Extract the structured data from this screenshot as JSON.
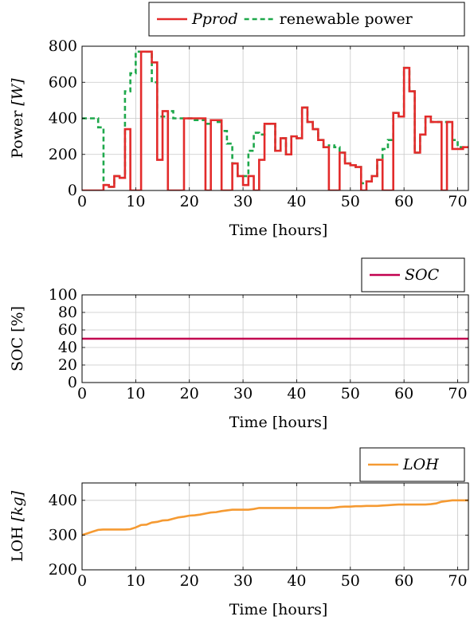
{
  "colors": {
    "pprod": "#e32b2b",
    "renewable": "#1ea84b",
    "soc": "#c2004f",
    "loh": "#f59a32"
  },
  "chart_data": [
    {
      "type": "line",
      "xlabel": "Time [hours]",
      "ylabel_main": "Power ",
      "ylabel_unit": "[W]",
      "xlim": [
        0,
        72
      ],
      "ylim": [
        0,
        800
      ],
      "xticks": [
        0,
        10,
        20,
        30,
        40,
        50,
        60,
        70
      ],
      "yticks": [
        0,
        200,
        400,
        600,
        800
      ],
      "step": true,
      "series": [
        {
          "name": "Pprod",
          "color_key": "pprod",
          "style": "solid",
          "pulse": true,
          "x": [
            0,
            1,
            2,
            3,
            4,
            5,
            6,
            7,
            8,
            9,
            10,
            11,
            12,
            13,
            14,
            15,
            16,
            17,
            18,
            19,
            20,
            21,
            22,
            23,
            24,
            25,
            26,
            27,
            28,
            29,
            30,
            31,
            32,
            33,
            34,
            35,
            36,
            37,
            38,
            39,
            40,
            41,
            42,
            43,
            44,
            45,
            46,
            47,
            48,
            49,
            50,
            51,
            52,
            53,
            54,
            55,
            56,
            57,
            58,
            59,
            60,
            61,
            62,
            63,
            64,
            65,
            66,
            67,
            68,
            69,
            70,
            71
          ],
          "values": [
            0,
            0,
            0,
            0,
            30,
            20,
            80,
            70,
            340,
            0,
            0,
            770,
            770,
            710,
            170,
            440,
            0,
            0,
            0,
            400,
            400,
            400,
            400,
            0,
            390,
            390,
            0,
            0,
            150,
            80,
            30,
            80,
            0,
            170,
            370,
            370,
            220,
            290,
            200,
            300,
            290,
            460,
            380,
            340,
            280,
            240,
            0,
            0,
            210,
            150,
            140,
            130,
            0,
            50,
            80,
            170,
            0,
            0,
            430,
            410,
            680,
            550,
            210,
            310,
            410,
            380,
            380,
            0,
            380,
            230,
            230,
            240
          ]
        },
        {
          "name": "renewable power",
          "color_key": "renewable",
          "style": "dashed",
          "pulse": false,
          "x": [
            0,
            1,
            2,
            3,
            4,
            5,
            6,
            7,
            8,
            9,
            10,
            11,
            12,
            13,
            14,
            15,
            16,
            17,
            18,
            19,
            20,
            21,
            22,
            23,
            24,
            25,
            26,
            27,
            28,
            29,
            30,
            31,
            32,
            33,
            34,
            35,
            36,
            37,
            38,
            39,
            40,
            41,
            42,
            43,
            44,
            45,
            46,
            47,
            48,
            49,
            50,
            51,
            52,
            53,
            54,
            55,
            56,
            57,
            58,
            59,
            60,
            61,
            62,
            63,
            64,
            65,
            66,
            67,
            68,
            69,
            70,
            71
          ],
          "values": [
            400,
            400,
            400,
            350,
            30,
            20,
            80,
            70,
            550,
            650,
            770,
            770,
            770,
            600,
            410,
            410,
            440,
            400,
            400,
            400,
            400,
            390,
            390,
            370,
            390,
            380,
            330,
            260,
            150,
            80,
            80,
            220,
            320,
            310,
            370,
            370,
            220,
            290,
            200,
            300,
            290,
            460,
            380,
            340,
            280,
            240,
            250,
            240,
            210,
            150,
            140,
            130,
            40,
            50,
            80,
            170,
            230,
            280,
            430,
            410,
            680,
            550,
            210,
            310,
            410,
            380,
            380,
            380,
            380,
            280,
            240,
            240
          ]
        }
      ]
    },
    {
      "type": "line",
      "xlabel": "Time [hours]",
      "ylabel_main": "SOC [%]",
      "ylabel_unit": "",
      "xlim": [
        0,
        72
      ],
      "ylim": [
        0,
        100
      ],
      "xticks": [
        0,
        10,
        20,
        30,
        40,
        50,
        60,
        70
      ],
      "yticks": [
        0,
        20,
        40,
        60,
        80,
        100
      ],
      "step": false,
      "series": [
        {
          "name": "SOC",
          "color_key": "soc",
          "style": "solid",
          "pulse": false,
          "x": [
            0,
            72
          ],
          "values": [
            50,
            50
          ]
        }
      ]
    },
    {
      "type": "line",
      "xlabel": "Time [hours]",
      "ylabel_main": "LOH ",
      "ylabel_unit": "[kg]",
      "xlim": [
        0,
        72
      ],
      "ylim": [
        200,
        450
      ],
      "xticks": [
        0,
        10,
        20,
        30,
        40,
        50,
        60,
        70
      ],
      "yticks": [
        200,
        300,
        400
      ],
      "step": false,
      "series": [
        {
          "name": "LOH",
          "color_key": "loh",
          "style": "solid",
          "pulse": false,
          "x": [
            0,
            1,
            2,
            3,
            4,
            5,
            6,
            7,
            8,
            9,
            10,
            11,
            12,
            13,
            14,
            15,
            16,
            17,
            18,
            19,
            20,
            21,
            22,
            23,
            24,
            25,
            26,
            27,
            28,
            29,
            30,
            31,
            32,
            33,
            34,
            35,
            36,
            37,
            38,
            39,
            40,
            41,
            42,
            43,
            44,
            45,
            46,
            47,
            48,
            49,
            50,
            51,
            52,
            53,
            54,
            55,
            56,
            57,
            58,
            59,
            60,
            61,
            62,
            63,
            64,
            65,
            66,
            67,
            68,
            69,
            70,
            71,
            72
          ],
          "values": [
            300,
            305,
            310,
            315,
            316,
            316,
            316,
            316,
            316,
            317,
            322,
            329,
            330,
            336,
            338,
            342,
            343,
            347,
            351,
            353,
            356,
            357,
            359,
            362,
            365,
            366,
            369,
            371,
            373,
            373,
            373,
            373,
            375,
            378,
            378,
            378,
            378,
            378,
            378,
            378,
            378,
            378,
            378,
            378,
            378,
            378,
            378,
            379,
            381,
            382,
            382,
            383,
            383,
            384,
            384,
            384,
            385,
            386,
            387,
            388,
            388,
            388,
            388,
            388,
            388,
            389,
            391,
            396,
            398,
            400,
            400,
            400,
            400
          ]
        }
      ]
    }
  ]
}
